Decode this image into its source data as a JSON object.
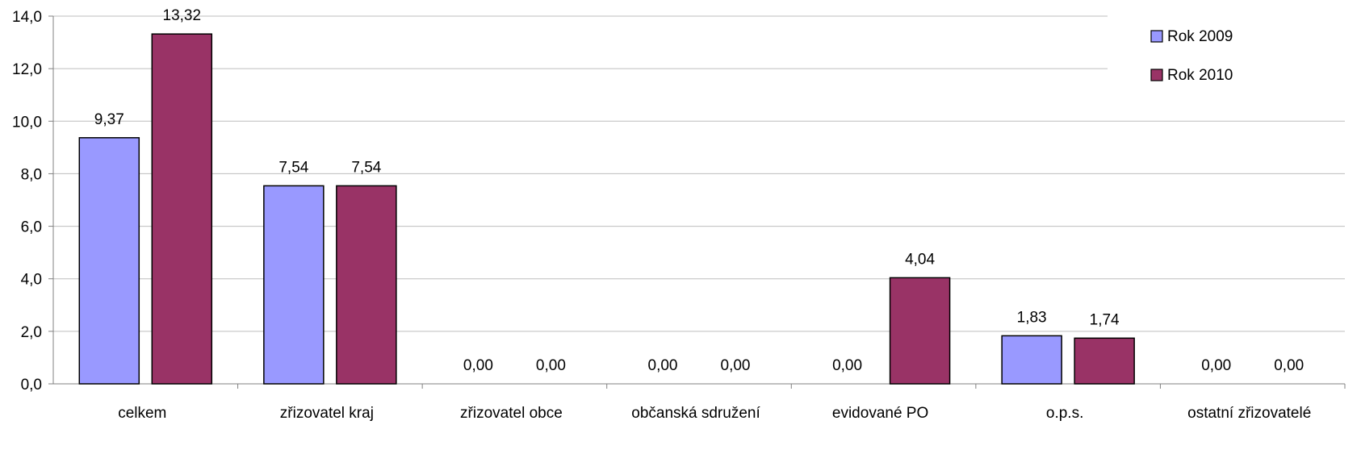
{
  "chart_data": {
    "type": "bar",
    "title": "",
    "xlabel": "",
    "ylabel": "",
    "ylim": [
      0,
      14
    ],
    "y_tick_step": 2,
    "y_tick_labels": [
      "0,0",
      "2,0",
      "4,0",
      "6,0",
      "8,0",
      "10,0",
      "12,0",
      "14,0"
    ],
    "grid": true,
    "legend_position": "top-right",
    "categories": [
      "celkem",
      "zřizovatel kraj",
      "zřizovatel obce",
      "občanská sdružení",
      "evidované PO",
      "o.p.s.",
      "ostatní zřizovatelé"
    ],
    "series": [
      {
        "name": "Rok 2009",
        "color": "#9999ff",
        "values": [
          9.37,
          7.54,
          0.0,
          0.0,
          0.0,
          1.83,
          0.0
        ],
        "labels": [
          "9,37",
          "7,54",
          "0,00",
          "0,00",
          "0,00",
          "1,83",
          "0,00"
        ]
      },
      {
        "name": "Rok 2010",
        "color": "#993366",
        "values": [
          13.32,
          7.54,
          0.0,
          0.0,
          4.04,
          1.74,
          0.0
        ],
        "labels": [
          "13,32",
          "7,54",
          "0,00",
          "0,00",
          "4,04",
          "1,74",
          "0,00"
        ]
      }
    ]
  }
}
